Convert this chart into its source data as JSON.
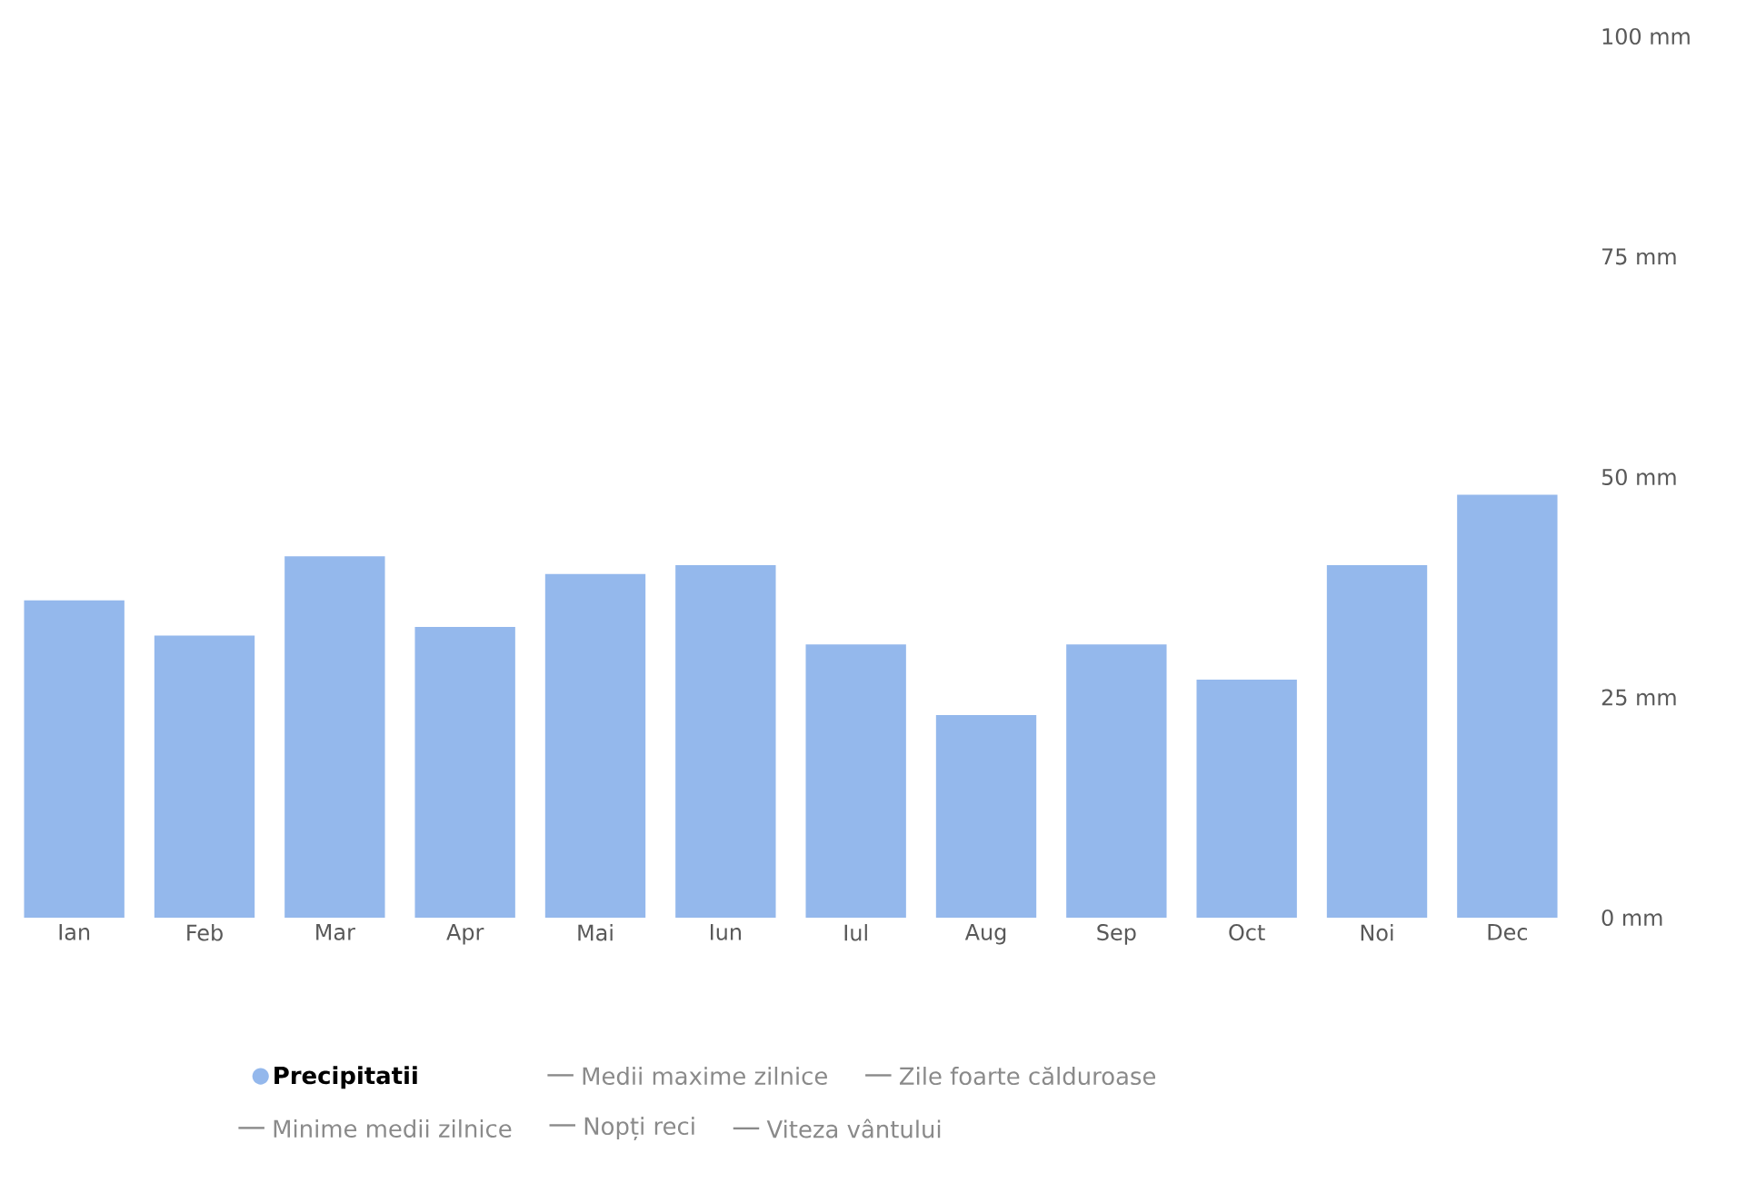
{
  "chart_data": {
    "type": "bar",
    "categories": [
      "Ian",
      "Feb",
      "Mar",
      "Apr",
      "Mai",
      "Iun",
      "Iul",
      "Aug",
      "Sep",
      "Oct",
      "Noi",
      "Dec"
    ],
    "series": [
      {
        "name": "Precipitatii",
        "color": "#94b8ec",
        "values": [
          36,
          32,
          41,
          33,
          39,
          40,
          31,
          23,
          31,
          27,
          40,
          48
        ]
      }
    ],
    "ylim": [
      0,
      100
    ],
    "yticks": [
      {
        "value": 0,
        "label": "0 mm"
      },
      {
        "value": 25,
        "label": "25 mm"
      },
      {
        "value": 50,
        "label": "50 mm"
      },
      {
        "value": 75,
        "label": "75 mm"
      },
      {
        "value": 100,
        "label": "100 mm"
      }
    ],
    "legend": "bottom",
    "annotations": [
      "Medii maxime zilnice",
      "Zile foarte călduroase",
      "Minime medii zilnice",
      "Nopți reci",
      "Viteza vântului"
    ]
  }
}
